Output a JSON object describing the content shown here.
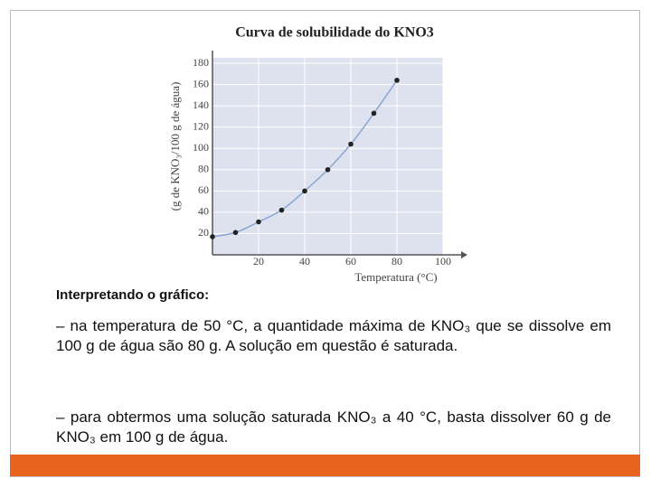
{
  "chart_data": {
    "type": "line",
    "title": "Curva de solubilidade do KNO3",
    "x_label": "Temperatura (°C)",
    "y_label": "(g de KNO₃/100 g de água)",
    "x": [
      0,
      10,
      20,
      30,
      40,
      50,
      60,
      70,
      80
    ],
    "series": [
      {
        "color": "#222222",
        "line_color": "#8aa6cf",
        "values": [
          17,
          21,
          31,
          42,
          60,
          80,
          104,
          133,
          164
        ]
      }
    ],
    "xlim": [
      0,
      100
    ],
    "xticks": [
      20,
      40,
      60,
      80,
      100
    ],
    "ylim": [
      0,
      180
    ],
    "yticks": [
      20,
      40,
      60,
      80,
      100,
      120,
      140,
      160,
      180
    ],
    "grid": true,
    "plot_background": "#dde2ee"
  },
  "text": {
    "heading": "Interpretando o gráfico:",
    "paragraphs": [
      "– na temperatura de 50 °C, a quantidade máxima de KNO₃ que se dissolve em 100 g de água são 80 g. A solução em questão é saturada.",
      "– para obtermos uma solução saturada KNO₃ a 40 °C, basta dissolver 60 g de KNO₃ em 100 g de água."
    ]
  }
}
